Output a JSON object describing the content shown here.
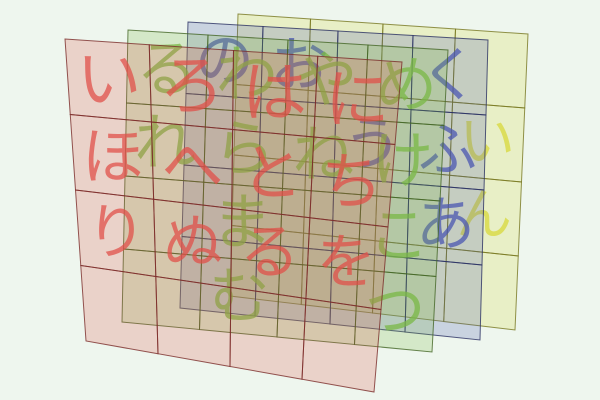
{
  "colors": {
    "background": "#eef6ee",
    "red": "#e0504a",
    "green": "#7ab845",
    "blue": "#4a56b0",
    "yellow": "#d8d83a"
  },
  "layers": [
    {
      "name": "yellow",
      "color": "#d8d83a",
      "cells": [
        [
          "",
          "",
          "",
          ""
        ],
        [
          "",
          "",
          "",
          "い"
        ],
        [
          "",
          "",
          "",
          "ん"
        ],
        [
          "",
          "",
          "",
          ""
        ]
      ]
    },
    {
      "name": "blue",
      "color": "#4a56b0",
      "cells": [
        [
          "の",
          "お",
          "",
          "く"
        ],
        [
          "",
          "",
          "う",
          "ふ"
        ],
        [
          "",
          "",
          "",
          "あ"
        ],
        [
          "",
          "",
          "",
          ""
        ]
      ]
    },
    {
      "name": "green",
      "color": "#7ab845",
      "cells": [
        [
          "る",
          "わ",
          "や",
          "め"
        ],
        [
          "れ",
          "ら",
          "ね",
          "け"
        ],
        [
          "",
          "ま",
          "",
          "こ"
        ],
        [
          "",
          "む",
          "",
          "つ"
        ]
      ]
    },
    {
      "name": "red",
      "color": "#e0504a",
      "cells": [
        [
          "い",
          "ろ",
          "は",
          "に"
        ],
        [
          "ほ",
          "へ",
          "と",
          "ち"
        ],
        [
          "り",
          "ぬ",
          "る",
          "を"
        ],
        [
          "",
          "",
          "",
          ""
        ]
      ]
    }
  ]
}
